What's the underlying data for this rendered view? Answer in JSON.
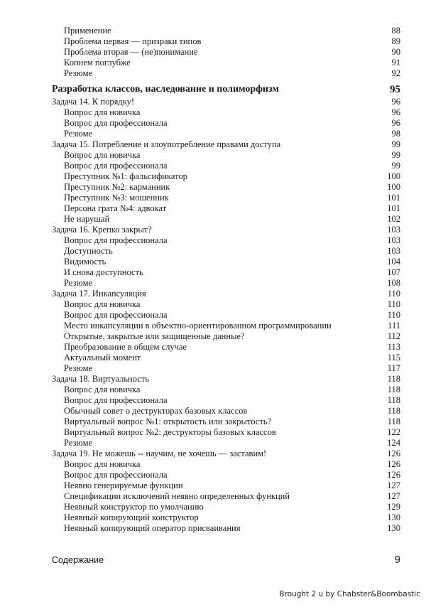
{
  "toc": {
    "pre": [
      {
        "title": "Применение",
        "page": "88"
      },
      {
        "title": "Проблема первая — призраки типов",
        "page": "89"
      },
      {
        "title": "Проблема вторая — (не)понимание",
        "page": "90"
      },
      {
        "title": "Копнем поглубже",
        "page": "91"
      },
      {
        "title": "Резюме",
        "page": "92"
      }
    ],
    "chapter": {
      "title": "Разработка классов, наследование и полиморфизм",
      "page": "95"
    },
    "entries": [
      {
        "title": "Задача 14. К порядку!",
        "page": "96",
        "level": 1
      },
      {
        "title": "Вопрос для новичка",
        "page": "96",
        "level": 2
      },
      {
        "title": "Вопрос для профессионала",
        "page": "96",
        "level": 2
      },
      {
        "title": "Резюме",
        "page": "98",
        "level": 2
      },
      {
        "title": "Задача 15. Потребление и злоупотребление  правами доступа",
        "page": "99",
        "level": 1
      },
      {
        "title": "Вопрос для новичка",
        "page": "99",
        "level": 2
      },
      {
        "title": "Вопрос для профессионала",
        "page": "99",
        "level": 2
      },
      {
        "title": "Преступник №1: фальсификатор",
        "page": "100",
        "level": 2
      },
      {
        "title": "Преступник №2: карманник",
        "page": "100",
        "level": 2
      },
      {
        "title": "Преступник №3: мошенник",
        "page": "101",
        "level": 2
      },
      {
        "title": "Персона грата №4: адвокат",
        "page": "101",
        "level": 2
      },
      {
        "title": "Не нарушай",
        "page": "102",
        "level": 2
      },
      {
        "title": "Задача 16. Крепко закрыт?",
        "page": "103",
        "level": 1
      },
      {
        "title": "Вопрос для профессионала",
        "page": "103",
        "level": 2
      },
      {
        "title": "Доступность",
        "page": "103",
        "level": 2
      },
      {
        "title": "Видимость",
        "page": "104",
        "level": 2
      },
      {
        "title": "И снова доступность",
        "page": "107",
        "level": 2
      },
      {
        "title": "Резюме",
        "page": "108",
        "level": 2
      },
      {
        "title": "Задача 17. Инкапсуляция",
        "page": "110",
        "level": 1
      },
      {
        "title": "Вопрос для новичка",
        "page": "110",
        "level": 2
      },
      {
        "title": "Вопрос для профессионала",
        "page": "110",
        "level": 2
      },
      {
        "title": "Место инкапсуляции в объектно-ориентированном программировании",
        "page": "111",
        "level": 2
      },
      {
        "title": "Открытые, закрытые или защищенные данные?",
        "page": "112",
        "level": 2
      },
      {
        "title": "Преобразование в общем случае",
        "page": "113",
        "level": 2
      },
      {
        "title": "Актуальный момент",
        "page": "115",
        "level": 2
      },
      {
        "title": "Резюме",
        "page": "117",
        "level": 2
      },
      {
        "title": "Задача 18. Виртуальность",
        "page": "118",
        "level": 1
      },
      {
        "title": "Вопрос для новичка",
        "page": "118",
        "level": 2
      },
      {
        "title": "Вопрос для профессионала",
        "page": "118",
        "level": 2
      },
      {
        "title": "Обычный совет о деструкторах базовых классов",
        "page": "118",
        "level": 2
      },
      {
        "title": "Виртуальный вопрос №1: открытость или закрытость?",
        "page": "118",
        "level": 2
      },
      {
        "title": "Виртуальный вопрос №2: деструкторы базовых классов",
        "page": "122",
        "level": 2
      },
      {
        "title": "Резюме",
        "page": "124",
        "level": 2
      },
      {
        "title": "Задача 19. Не можешь -- научим,  не хочешь — заставим!",
        "page": "126",
        "level": 1
      },
      {
        "title": "Вопрос для новичка",
        "page": "126",
        "level": 2
      },
      {
        "title": "Вопрос для профессионала",
        "page": "126",
        "level": 2
      },
      {
        "title": "Неявно генерируемые функции",
        "page": "127",
        "level": 2
      },
      {
        "title": "Спецификации исключений неявно определенных функций",
        "page": "127",
        "level": 2
      },
      {
        "title": "Неявный конструктор по умолчанию",
        "page": "129",
        "level": 2
      },
      {
        "title": "Неявный копирующий конструктор",
        "page": "130",
        "level": 2
      },
      {
        "title": "Неявный копирующий оператор присваивания",
        "page": "130",
        "level": 2
      }
    ]
  },
  "footer": {
    "section": "Содержание",
    "page_number": "9"
  },
  "credit": "Brought 2 u by Chabster&Boombastic"
}
